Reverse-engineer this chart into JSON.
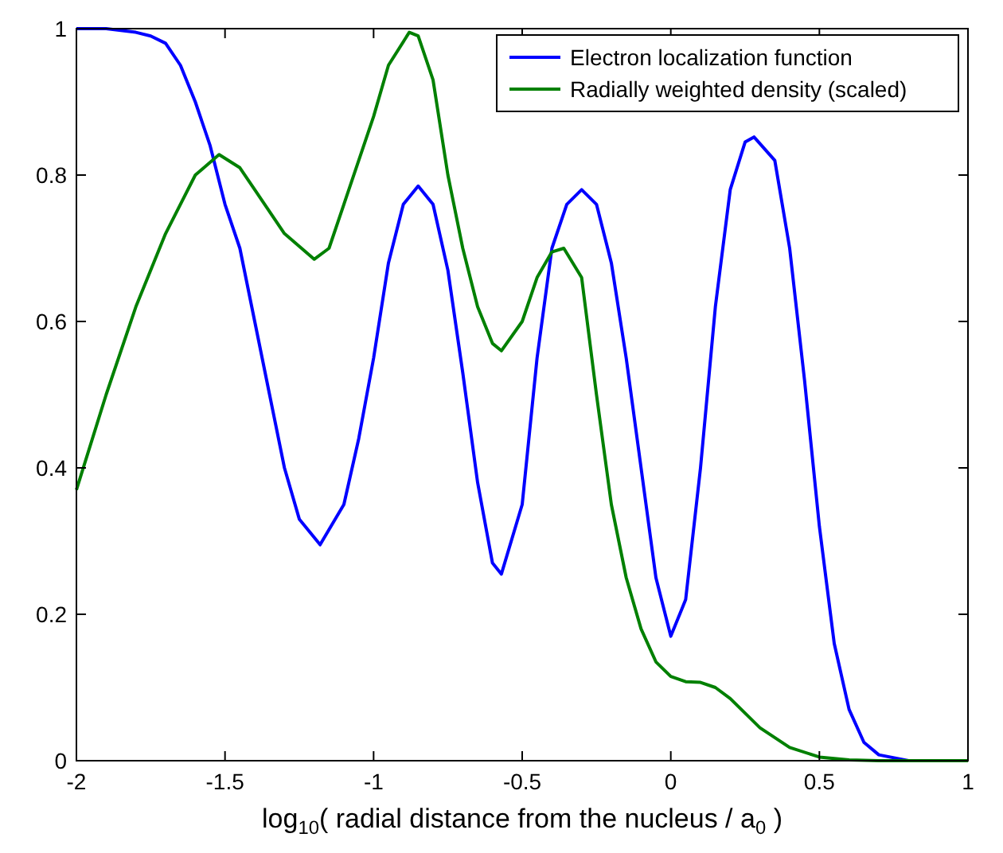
{
  "chart_data": {
    "type": "line",
    "xlabel": "log$_{10}$( radial distance from the nucleus / a$_{0}$ )",
    "xlim": [
      -2,
      1
    ],
    "xticks": [
      -2,
      -1.5,
      -1,
      -0.5,
      0,
      0.5,
      1
    ],
    "ylim": [
      0,
      1
    ],
    "yticks": [
      0,
      0.2,
      0.4,
      0.6,
      0.8,
      1
    ],
    "legend": "top right",
    "grid": false,
    "line_style": "solid",
    "marker": "none",
    "series": [
      {
        "name": "Electron localization function",
        "color": "#0000ff",
        "x": [
          -2,
          -1.9,
          -1.8,
          -1.75,
          -1.7,
          -1.65,
          -1.6,
          -1.55,
          -1.5,
          -1.45,
          -1.4,
          -1.35,
          -1.3,
          -1.25,
          -1.18,
          -1.1,
          -1.05,
          -1,
          -0.95,
          -0.9,
          -0.85,
          -0.8,
          -0.75,
          -0.7,
          -0.65,
          -0.6,
          -0.57,
          -0.5,
          -0.45,
          -0.4,
          -0.35,
          -0.3,
          -0.25,
          -0.2,
          -0.15,
          -0.1,
          -0.05,
          0,
          0.05,
          0.1,
          0.15,
          0.2,
          0.25,
          0.28,
          0.35,
          0.4,
          0.45,
          0.5,
          0.55,
          0.6,
          0.65,
          0.7,
          0.8,
          1
        ],
        "values": [
          1,
          1,
          0.995,
          0.99,
          0.98,
          0.95,
          0.9,
          0.84,
          0.76,
          0.7,
          0.6,
          0.5,
          0.4,
          0.33,
          0.295,
          0.35,
          0.44,
          0.55,
          0.68,
          0.76,
          0.785,
          0.76,
          0.67,
          0.53,
          0.38,
          0.27,
          0.255,
          0.35,
          0.55,
          0.7,
          0.76,
          0.78,
          0.76,
          0.68,
          0.55,
          0.4,
          0.25,
          0.17,
          0.22,
          0.4,
          0.62,
          0.78,
          0.845,
          0.852,
          0.82,
          0.7,
          0.52,
          0.32,
          0.16,
          0.07,
          0.025,
          0.008,
          0,
          0
        ]
      },
      {
        "name": "Radially weighted density (scaled)",
        "color": "#008000",
        "x": [
          -2,
          -1.9,
          -1.8,
          -1.7,
          -1.6,
          -1.52,
          -1.45,
          -1.4,
          -1.3,
          -1.2,
          -1.15,
          -1.1,
          -1,
          -0.95,
          -0.88,
          -0.85,
          -0.8,
          -0.75,
          -0.7,
          -0.65,
          -0.6,
          -0.57,
          -0.5,
          -0.45,
          -0.4,
          -0.36,
          -0.3,
          -0.25,
          -0.2,
          -0.15,
          -0.1,
          -0.05,
          0,
          0.05,
          0.1,
          0.15,
          0.2,
          0.3,
          0.4,
          0.5,
          0.6,
          0.7,
          1
        ],
        "values": [
          0.37,
          0.5,
          0.62,
          0.72,
          0.8,
          0.828,
          0.81,
          0.78,
          0.72,
          0.685,
          0.7,
          0.76,
          0.88,
          0.95,
          0.995,
          0.99,
          0.93,
          0.8,
          0.7,
          0.62,
          0.57,
          0.56,
          0.6,
          0.66,
          0.695,
          0.7,
          0.66,
          0.5,
          0.35,
          0.25,
          0.18,
          0.135,
          0.115,
          0.108,
          0.107,
          0.1,
          0.085,
          0.045,
          0.018,
          0.005,
          0.001,
          0,
          0
        ]
      }
    ]
  }
}
